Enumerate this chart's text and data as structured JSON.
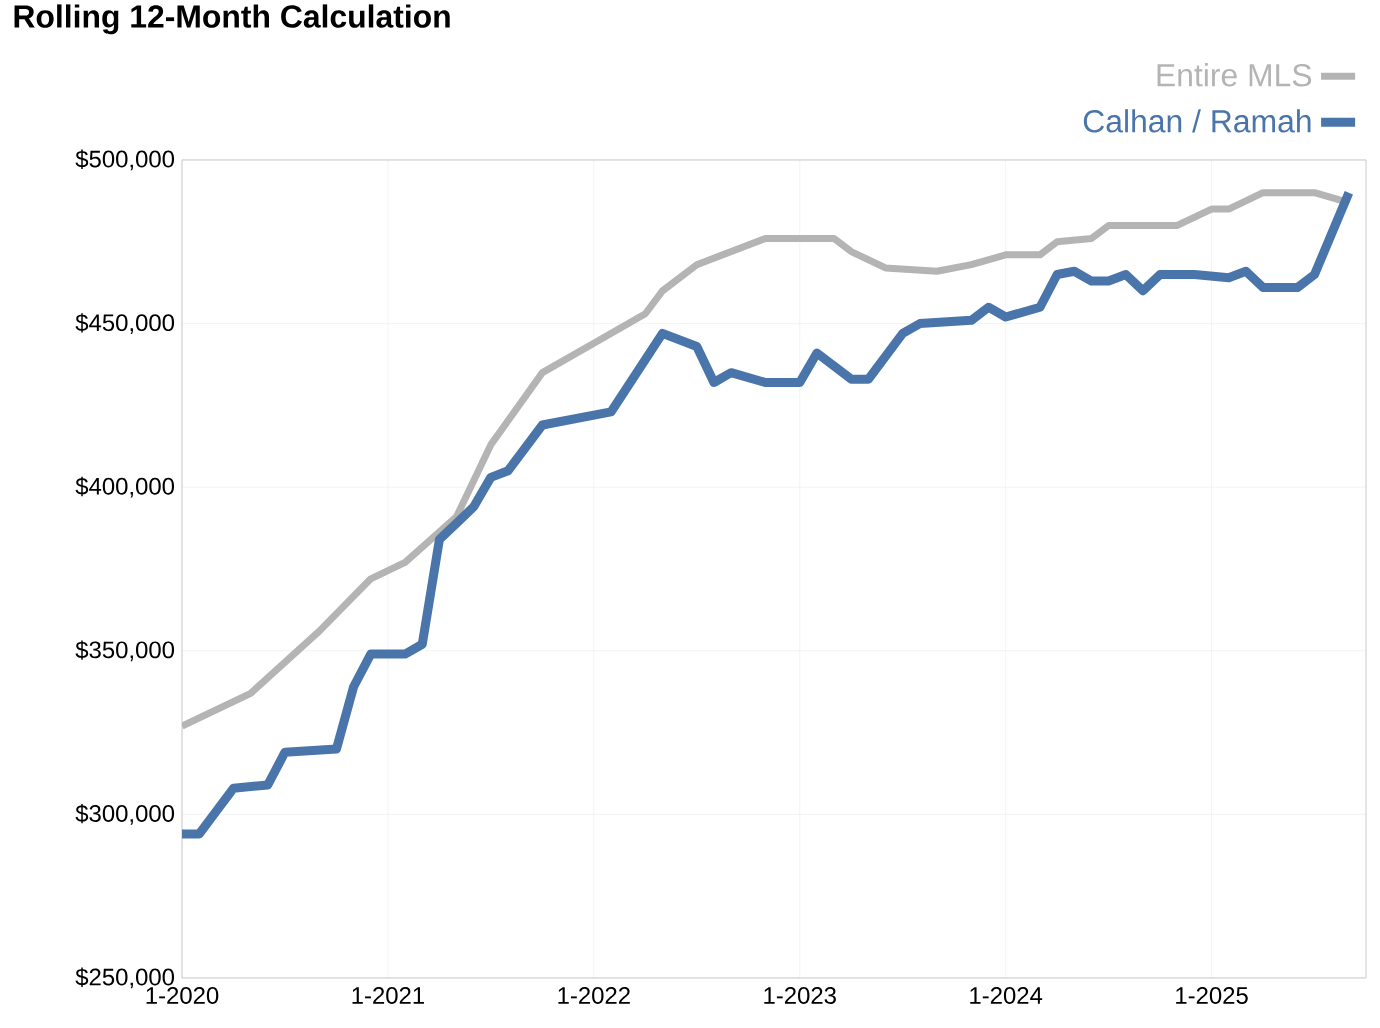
{
  "chart_data": {
    "type": "line",
    "title": "Rolling 12-Month Calculation",
    "xlim": [
      "2020-01",
      "2025-10"
    ],
    "ylim": [
      250000,
      500000
    ],
    "xticks": [
      {
        "value": "2020-01",
        "label": "1-2020"
      },
      {
        "value": "2021-01",
        "label": "1-2021"
      },
      {
        "value": "2022-01",
        "label": "1-2022"
      },
      {
        "value": "2023-01",
        "label": "1-2023"
      },
      {
        "value": "2024-01",
        "label": "1-2024"
      },
      {
        "value": "2025-01",
        "label": "1-2025"
      }
    ],
    "yticks": [
      {
        "value": 250000,
        "label": "$250,000"
      },
      {
        "value": 300000,
        "label": "$300,000"
      },
      {
        "value": 350000,
        "label": "$350,000"
      },
      {
        "value": 400000,
        "label": "$400,000"
      },
      {
        "value": 450000,
        "label": "$450,000"
      },
      {
        "value": 500000,
        "label": "$500,000"
      }
    ],
    "grid": true,
    "legend": "top right",
    "marker": "none",
    "line_style": "solid",
    "series": [
      {
        "name": "Entire MLS",
        "color": "#b4b4b4",
        "x": [
          "2020-01",
          "2020-05",
          "2020-09",
          "2020-12",
          "2021-02",
          "2021-05",
          "2021-07",
          "2021-10",
          "2022-01",
          "2022-04",
          "2022-05",
          "2022-07",
          "2022-11",
          "2023-03",
          "2023-04",
          "2023-06",
          "2023-09",
          "2023-11",
          "2024-01",
          "2024-03",
          "2024-04",
          "2024-06",
          "2024-07",
          "2024-11",
          "2025-01",
          "2025-02",
          "2025-04",
          "2025-07",
          "2025-09"
        ],
        "values": [
          327000,
          337000,
          356000,
          372000,
          377000,
          391000,
          413000,
          435000,
          444000,
          453000,
          460000,
          468000,
          476000,
          476000,
          472000,
          467000,
          466000,
          468000,
          471000,
          471000,
          475000,
          476000,
          480000,
          480000,
          485000,
          485000,
          490000,
          490000,
          487000
        ]
      },
      {
        "name": "Calhan / Ramah",
        "color": "#4a75ab",
        "x": [
          "2020-01",
          "2020-02",
          "2020-03",
          "2020-04",
          "2020-06",
          "2020-07",
          "2020-10",
          "2020-11",
          "2020-12",
          "2021-02",
          "2021-03",
          "2021-04",
          "2021-05",
          "2021-06",
          "2021-07",
          "2021-08",
          "2021-10",
          "2022-02",
          "2022-05",
          "2022-07",
          "2022-08",
          "2022-09",
          "2022-11",
          "2023-01",
          "2023-02",
          "2023-04",
          "2023-05",
          "2023-07",
          "2023-08",
          "2023-11",
          "2023-12",
          "2024-01",
          "2024-03",
          "2024-04",
          "2024-05",
          "2024-06",
          "2024-07",
          "2024-08",
          "2024-09",
          "2024-10",
          "2024-12",
          "2025-02",
          "2025-03",
          "2025-04",
          "2025-06",
          "2025-07",
          "2025-09"
        ],
        "values": [
          294000,
          294000,
          301000,
          308000,
          309000,
          319000,
          320000,
          339000,
          349000,
          349000,
          352000,
          384000,
          389000,
          394000,
          403000,
          405000,
          419000,
          423000,
          447000,
          443000,
          432000,
          435000,
          432000,
          432000,
          441000,
          433000,
          433000,
          447000,
          450000,
          451000,
          455000,
          452000,
          455000,
          465000,
          466000,
          463000,
          463000,
          465000,
          460000,
          465000,
          465000,
          464000,
          466000,
          461000,
          461000,
          465000,
          490000
        ]
      }
    ]
  }
}
